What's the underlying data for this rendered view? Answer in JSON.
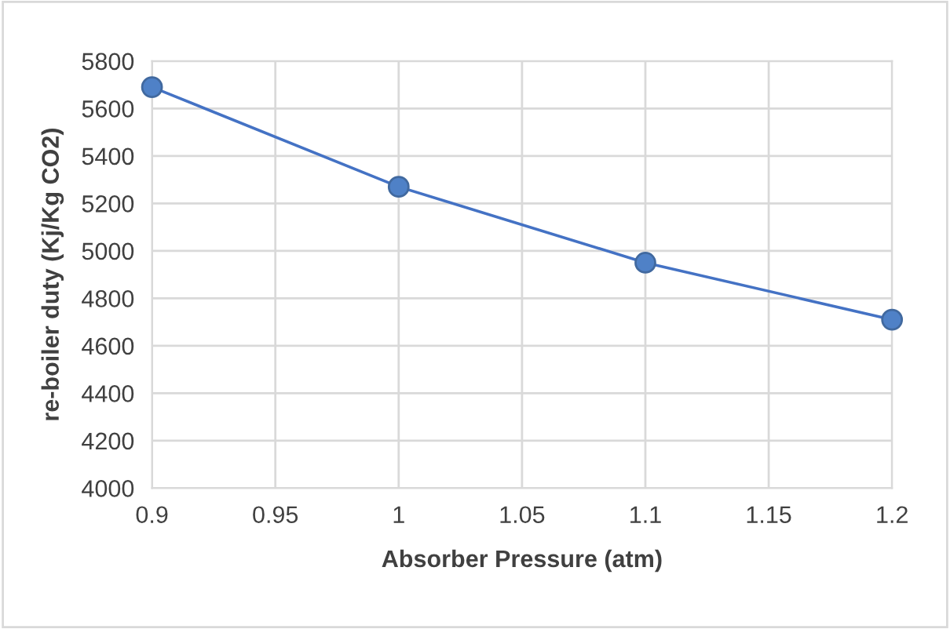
{
  "chart_data": {
    "type": "line",
    "xlabel": "Absorber Pressure (atm)",
    "ylabel": "re-boiler duty (Kj/Kg CO2)",
    "x": [
      0.9,
      1,
      1.1,
      1.2
    ],
    "series": [
      {
        "color": "#4472c4",
        "values": [
          5690,
          5270,
          4950,
          4710
        ]
      }
    ],
    "marker": "circle",
    "line_style": "solid",
    "grid": true,
    "legend": false,
    "xlim": [
      0.9,
      1.2
    ],
    "xticks": [
      {
        "value": 0.9,
        "label": "0.9"
      },
      {
        "value": 0.95,
        "label": "0.95"
      },
      {
        "value": 1,
        "label": "1"
      },
      {
        "value": 1.05,
        "label": "1.05"
      },
      {
        "value": 1.1,
        "label": "1.1"
      },
      {
        "value": 1.15,
        "label": "1.15"
      },
      {
        "value": 1.2,
        "label": "1.2"
      }
    ],
    "ylim": [
      4000,
      5800
    ],
    "yticks": [
      4000,
      4200,
      4400,
      4600,
      4800,
      5000,
      5200,
      5400,
      5600,
      5800
    ]
  }
}
